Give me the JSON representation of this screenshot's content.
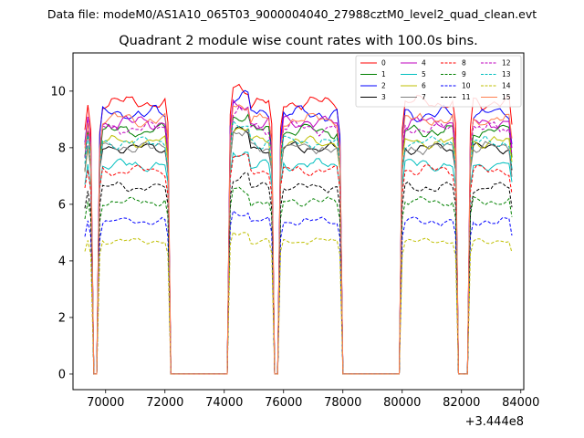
{
  "chart_data": {
    "type": "line",
    "suptitle": "Data file: modeM0/AS1A10_065T03_9000004040_27988cztM0_level2_quad_clean.evt",
    "title": "Quadrant 2 module wise count rates with 100.0s bins.",
    "xlabel": "",
    "ylabel": "",
    "x_offset_label": "+3.444e8",
    "xlim": [
      68900,
      84100
    ],
    "ylim": [
      -0.55,
      11.35
    ],
    "xticks": [
      70000,
      72000,
      74000,
      76000,
      78000,
      80000,
      82000,
      84000
    ],
    "xtick_labels": [
      "70000",
      "72000",
      "74000",
      "76000",
      "78000",
      "80000",
      "82000",
      "84000"
    ],
    "yticks": [
      0,
      2,
      4,
      6,
      8,
      10
    ],
    "ytick_labels": [
      "0",
      "2",
      "4",
      "6",
      "8",
      "10"
    ],
    "grid": false,
    "legend_position": "top-right",
    "on_segments": [
      [
        69300,
        69500
      ],
      [
        69800,
        72100
      ],
      [
        74200,
        75600
      ],
      [
        75900,
        77900
      ],
      [
        80000,
        81800
      ],
      [
        82300,
        83700
      ]
    ],
    "series": [
      {
        "name": "0",
        "color": "#ff0000",
        "dash": "solid",
        "level": 9.6
      },
      {
        "name": "1",
        "color": "#008000",
        "dash": "solid",
        "level": 8.6
      },
      {
        "name": "2",
        "color": "#0000ff",
        "dash": "solid",
        "level": 9.2
      },
      {
        "name": "3",
        "color": "#000000",
        "dash": "solid",
        "level": 8.0
      },
      {
        "name": "4",
        "color": "#bf00bf",
        "dash": "solid",
        "level": 8.9
      },
      {
        "name": "5",
        "color": "#00bfbf",
        "dash": "solid",
        "level": 7.4
      },
      {
        "name": "6",
        "color": "#bfbf00",
        "dash": "solid",
        "level": 8.2
      },
      {
        "name": "7",
        "color": "#808080",
        "dash": "solid",
        "level": 8.0
      },
      {
        "name": "8",
        "color": "#ff0000",
        "dash": "dashed",
        "level": 7.2
      },
      {
        "name": "9",
        "color": "#008000",
        "dash": "dashed",
        "level": 6.1
      },
      {
        "name": "10",
        "color": "#0000ff",
        "dash": "dashed",
        "level": 5.4
      },
      {
        "name": "11",
        "color": "#000000",
        "dash": "dashed",
        "level": 6.6
      },
      {
        "name": "12",
        "color": "#bf00bf",
        "dash": "dashed",
        "level": 8.7
      },
      {
        "name": "13",
        "color": "#00bfbf",
        "dash": "dashed",
        "level": 8.2
      },
      {
        "name": "14",
        "color": "#bfbf00",
        "dash": "dashed",
        "level": 4.7
      },
      {
        "name": "15",
        "color": "#ff7f50",
        "dash": "solid",
        "level": 9.0
      }
    ]
  }
}
